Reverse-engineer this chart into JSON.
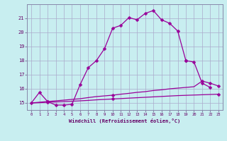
{
  "background_color": "#c8eef0",
  "grid_color": "#aaaacc",
  "line_color": "#990099",
  "xlabel": "Windchill (Refroidissement éolien,°C)",
  "ylabel_ticks": [
    15,
    16,
    17,
    18,
    19,
    20,
    21
  ],
  "xlabel_ticks": [
    0,
    1,
    2,
    3,
    4,
    5,
    6,
    7,
    8,
    9,
    10,
    11,
    12,
    13,
    14,
    15,
    16,
    17,
    18,
    19,
    20,
    21,
    22,
    23
  ],
  "xlim": [
    -0.5,
    23.5
  ],
  "ylim": [
    14.5,
    22.0
  ],
  "line1": {
    "x": [
      0,
      1,
      2,
      3,
      4,
      5,
      6,
      7,
      8,
      9,
      10,
      11,
      12,
      13,
      14,
      15,
      16,
      17,
      18,
      19
    ],
    "y": [
      15.0,
      15.75,
      15.1,
      14.85,
      14.85,
      14.9,
      16.3,
      17.5,
      18.0,
      18.85,
      20.3,
      20.5,
      21.05,
      20.9,
      21.35,
      21.55,
      20.9,
      20.65,
      20.1,
      18.0
    ]
  },
  "line2": {
    "x": [
      19,
      20,
      21,
      22
    ],
    "y": [
      18.0,
      17.9,
      16.4,
      16.1
    ]
  },
  "line3": {
    "x": [
      0,
      1,
      2,
      3,
      4,
      5,
      6,
      7,
      8,
      9,
      10,
      11,
      12,
      13,
      14,
      15,
      16,
      17,
      18,
      19,
      20,
      21,
      22,
      23
    ],
    "y": [
      15.0,
      15.05,
      15.1,
      15.15,
      15.2,
      15.25,
      15.3,
      15.38,
      15.45,
      15.5,
      15.55,
      15.62,
      15.68,
      15.75,
      15.8,
      15.88,
      15.93,
      16.0,
      16.05,
      16.1,
      16.15,
      16.55,
      16.4,
      16.2
    ]
  },
  "line4": {
    "x": [
      0,
      1,
      2,
      3,
      4,
      5,
      6,
      7,
      8,
      9,
      10,
      11,
      12,
      13,
      14,
      15,
      16,
      17,
      18,
      19,
      20,
      21,
      22,
      23
    ],
    "y": [
      15.0,
      15.02,
      15.05,
      15.07,
      15.1,
      15.12,
      15.15,
      15.18,
      15.22,
      15.25,
      15.28,
      15.31,
      15.34,
      15.37,
      15.4,
      15.43,
      15.46,
      15.49,
      15.52,
      15.54,
      15.56,
      15.58,
      15.6,
      15.62
    ]
  },
  "line3_markers": [
    2,
    10,
    21,
    22,
    23
  ],
  "line4_markers": [
    2,
    10,
    23
  ]
}
